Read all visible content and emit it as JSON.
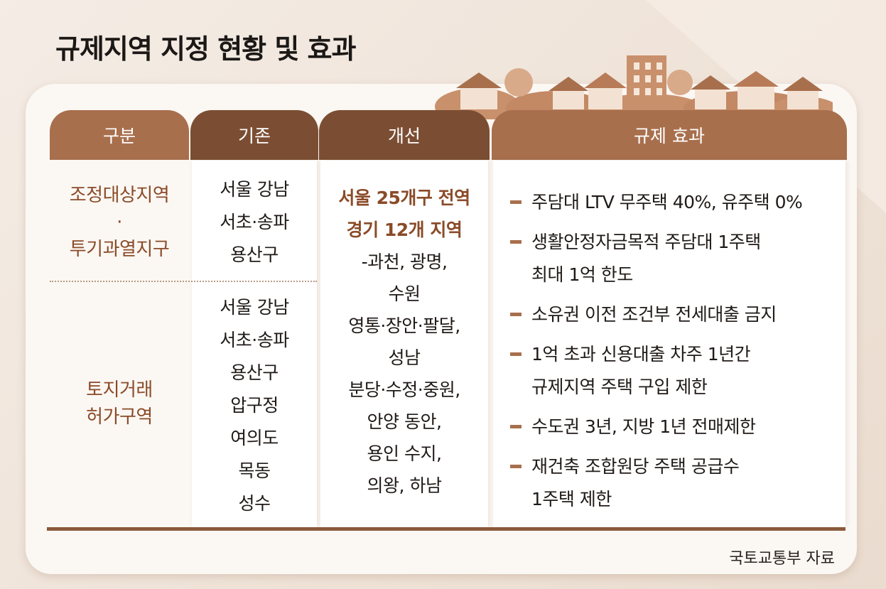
{
  "title": "규제지역 지정 현황 및 효과",
  "headers": [
    "구분",
    "기존",
    "개선",
    "규제 효과"
  ],
  "categories": [
    {
      "lines": [
        "조정대상지역",
        "·",
        "투기과열지구"
      ]
    },
    {
      "lines": [
        "토지거래",
        "허가구역"
      ]
    }
  ],
  "existing": [
    {
      "lines": [
        "서울 강남",
        "서초·송파",
        "용산구"
      ]
    },
    {
      "lines": [
        "서울 강남",
        "서초·송파",
        "용산구",
        "압구정",
        "여의도",
        "목동",
        "성수"
      ]
    }
  ],
  "improved": {
    "highlight": [
      "서울 25개구 전역",
      "경기 12개 지역"
    ],
    "lines": [
      "-과천, 광명,",
      "수원",
      "영통·장안·팔달,",
      "성남",
      "분당·수정·중원,",
      "안양 동안,",
      "용인 수지,",
      "의왕, 하남"
    ]
  },
  "effects": [
    {
      "lines": [
        "주담대 LTV 무주택 40%, 유주택 0%"
      ]
    },
    {
      "lines": [
        "생활안정자금목적 주담대 1주택",
        "최대 1억 한도"
      ]
    },
    {
      "lines": [
        "소유권 이전 조건부 전세대출 금지"
      ]
    },
    {
      "lines": [
        "1억 초과 신용대출 차주 1년간",
        "규제지역 주택 구입 제한"
      ]
    },
    {
      "lines": [
        "수도권 3년, 지방 1년 전매제한"
      ]
    },
    {
      "lines": [
        "재건축 조합원당 주택 공급수",
        "1주택 제한"
      ]
    }
  ],
  "source": "국토교통부 자료",
  "colors": {
    "header_light": "#a86f4d",
    "header_dark": "#7b4e33",
    "accent_text": "#8a4b28"
  }
}
